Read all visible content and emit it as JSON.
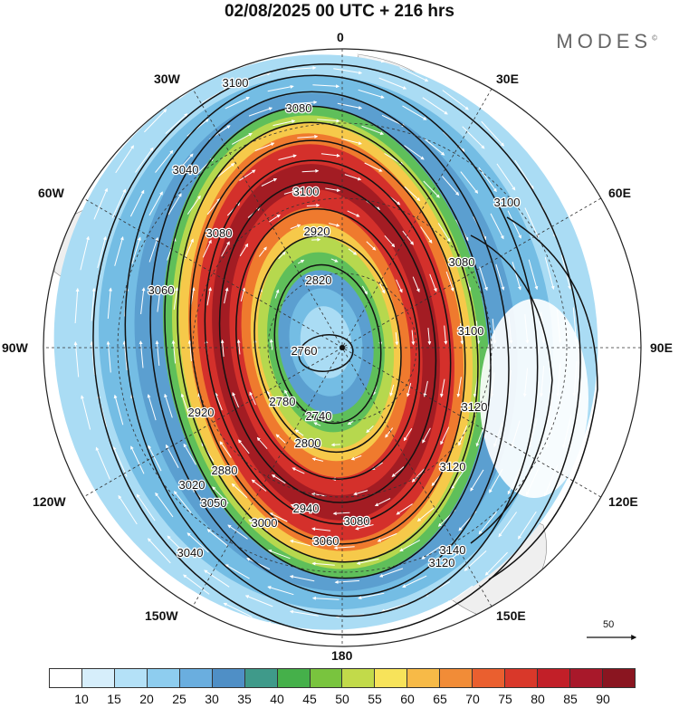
{
  "header": {
    "title": "02/08/2025  00 UTC  + 216 hrs",
    "brand": "MODES",
    "brand_mark": "©"
  },
  "map": {
    "projection": "south-polar-stereographic",
    "longitude_labels": {
      "lon_0": "0",
      "lon_30e": "30E",
      "lon_60e": "60E",
      "lon_90e": "90E",
      "lon_120e": "120E",
      "lon_150e": "150E",
      "lon_180": "180",
      "lon_150w": "150W",
      "lon_120w": "120W",
      "lon_90w": "90W",
      "lon_60w": "60W",
      "lon_30w": "30W"
    },
    "contour_levels": [
      "2740",
      "2760",
      "2780",
      "2800",
      "2820",
      "2840",
      "2860",
      "2880",
      "2900",
      "2920",
      "2940",
      "2960",
      "2980",
      "3000",
      "3020",
      "3040",
      "3060",
      "3080",
      "3100",
      "3120",
      "3140"
    ],
    "visible_contour_labels": [
      "3100",
      "3080",
      "3040",
      "3080",
      "3060",
      "3100",
      "2920",
      "2820",
      "2760",
      "2740",
      "2780",
      "2800",
      "2880",
      "2920",
      "2940",
      "3000",
      "3020",
      "3040",
      "3050",
      "3060",
      "3080",
      "3100",
      "3120",
      "3140",
      "3120",
      "3100",
      "3080",
      "3120"
    ],
    "wind_speed_colors": {
      "ring_outer": "#aadcf4",
      "ring_20": "#74bde4",
      "ring_30": "#5b9fd0",
      "ring_40": "#5fbf5a",
      "ring_50": "#b6d84e",
      "ring_60": "#f6c94a",
      "ring_70": "#ef7a2e",
      "ring_80": "#d4302b",
      "ring_90": "#a31c23",
      "land": "#efefef",
      "contour": "#111111",
      "streamline": "#ffffff"
    }
  },
  "colorbar": {
    "colors": [
      "#ffffff",
      "#d6eefb",
      "#b4e1f7",
      "#8ecdef",
      "#6aaedf",
      "#4f8fc6",
      "#3f9a8a",
      "#45b04a",
      "#79c43e",
      "#c2da4a",
      "#f7e35a",
      "#f7ba47",
      "#f18c37",
      "#ea5f2f",
      "#d9382a",
      "#c21f28",
      "#a8182a",
      "#8a1520"
    ],
    "tick_labels": [
      "10",
      "15",
      "20",
      "25",
      "30",
      "35",
      "40",
      "45",
      "50",
      "55",
      "60",
      "65",
      "70",
      "75",
      "80",
      "85",
      "90"
    ]
  },
  "reference_vector": {
    "label": "50"
  }
}
